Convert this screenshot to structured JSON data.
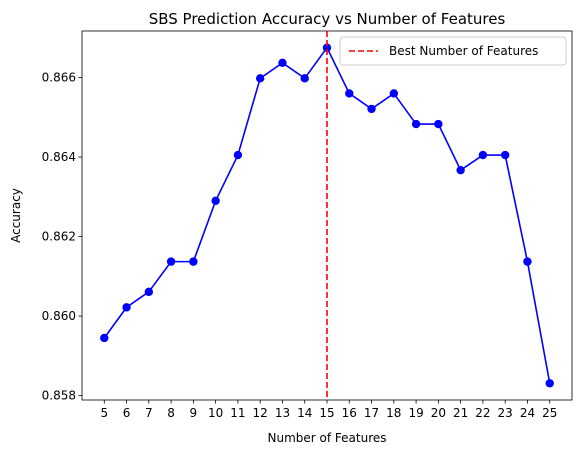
{
  "chart_data": {
    "type": "line",
    "title": "SBS Prediction Accuracy vs Number of Features",
    "xlabel": "Number of Features",
    "ylabel": "Accuracy",
    "x": [
      5,
      6,
      7,
      8,
      9,
      10,
      11,
      12,
      13,
      14,
      15,
      16,
      17,
      18,
      19,
      20,
      21,
      22,
      23,
      24,
      25
    ],
    "series": [
      {
        "values": [
          0.85945,
          0.86022,
          0.86061,
          0.86137,
          0.86137,
          0.8629,
          0.86405,
          0.86598,
          0.86637,
          0.86598,
          0.86675,
          0.8656,
          0.86521,
          0.8656,
          0.86483,
          0.86483,
          0.86367,
          0.86405,
          0.86405,
          0.86137,
          0.85831
        ],
        "color": "#0000ff",
        "marker": "circle"
      }
    ],
    "x_ticks": [
      "5",
      "6",
      "7",
      "8",
      "9",
      "10",
      "11",
      "12",
      "13",
      "14",
      "15",
      "16",
      "17",
      "18",
      "19",
      "20",
      "21",
      "22",
      "23",
      "24",
      "25"
    ],
    "y_ticks": [
      "0.858",
      "0.860",
      "0.862",
      "0.864",
      "0.866"
    ],
    "y_tick_values": [
      0.858,
      0.86,
      0.862,
      0.864,
      0.866
    ],
    "xlim": [
      4.0,
      26.0
    ],
    "ylim": [
      0.85789,
      0.86717
    ],
    "grid": false,
    "annotations": [
      {
        "type": "vline",
        "x": 15,
        "color": "#ff0000",
        "style": "dashed",
        "label": "Best Number of Features"
      }
    ],
    "legend": {
      "position": "top-right",
      "entries": [
        "Best Number of Features"
      ]
    }
  }
}
